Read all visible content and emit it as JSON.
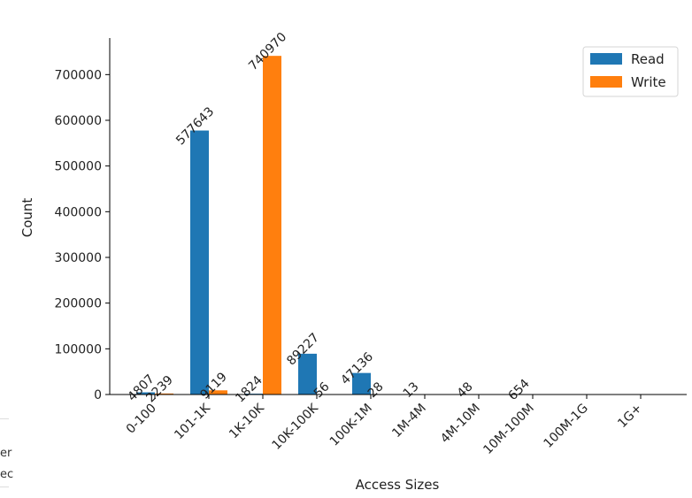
{
  "chart_data": {
    "type": "bar",
    "title": "",
    "xlabel": "Access Sizes",
    "ylabel": "Count",
    "ylim": [
      0,
      780000
    ],
    "yticks": [
      0,
      100000,
      200000,
      300000,
      400000,
      500000,
      600000,
      700000
    ],
    "ytick_labels": [
      "0",
      "100000",
      "200000",
      "300000",
      "400000",
      "500000",
      "600000",
      "700000"
    ],
    "categories": [
      "0-100",
      "101-1K",
      "1K-10K",
      "10K-100K",
      "100K-1M",
      "1M-4M",
      "4M-10M",
      "10M-100M",
      "100M-1G",
      "1G+"
    ],
    "series": [
      {
        "name": "Read",
        "color": "#1f77b4",
        "values": [
          4807,
          577643,
          1824,
          89227,
          47136,
          13,
          48,
          654,
          0,
          0
        ],
        "labels": [
          "4807",
          "577643",
          "1824",
          "89227",
          "47136",
          "13",
          "48",
          "654",
          "",
          ""
        ]
      },
      {
        "name": "Write",
        "color": "#ff7f0e",
        "values": [
          2239,
          9119,
          740970,
          56,
          28,
          0,
          0,
          0,
          0,
          0
        ],
        "labels": [
          "2239",
          "9119",
          "740970",
          "56",
          "28",
          "",
          "",
          "",
          "",
          ""
        ]
      }
    ],
    "legend": {
      "position": "top-right",
      "entries": [
        "Read",
        "Write"
      ]
    },
    "grid": false
  },
  "edge_fragments": [
    "er",
    "ec"
  ]
}
